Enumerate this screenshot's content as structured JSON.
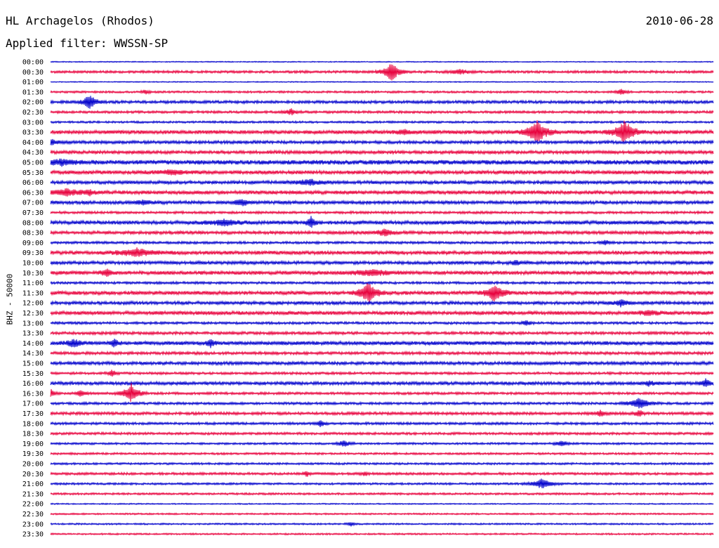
{
  "header": {
    "station": "HL Archagelos (Rhodos)",
    "date": "2010-06-28",
    "filter": "Applied filter: WWSSN-SP"
  },
  "chart_data": {
    "type": "line",
    "title": "HL Archagelos (Rhodos)",
    "ylabel": "BHZ - 50000",
    "row_labels": [
      "00:00",
      "00:30",
      "01:00",
      "01:30",
      "02:00",
      "02:30",
      "03:00",
      "03:30",
      "04:00",
      "04:30",
      "05:00",
      "05:30",
      "06:00",
      "06:30",
      "07:00",
      "07:30",
      "08:00",
      "08:30",
      "09:00",
      "09:30",
      "10:00",
      "10:30",
      "11:00",
      "11:30",
      "12:00",
      "12:30",
      "13:00",
      "13:30",
      "14:00",
      "14:30",
      "15:00",
      "15:30",
      "16:00",
      "16:30",
      "17:00",
      "17:30",
      "18:00",
      "18:30",
      "19:00",
      "19:30",
      "20:00",
      "20:30",
      "21:00",
      "21:30",
      "22:00",
      "22:30",
      "23:00",
      "23:30"
    ],
    "row_colors": [
      "#0000cc",
      "#e8003c"
    ],
    "noise": [
      0.5,
      1.2,
      0.5,
      1,
      1.4,
      1.2,
      1,
      1.8,
      1.5,
      1.6,
      2.2,
      1.8,
      1.6,
      1.8,
      1.6,
      1.2,
      1.8,
      1.6,
      1.2,
      1.8,
      1.6,
      1.8,
      1.2,
      1.8,
      1.6,
      1.8,
      1.2,
      1.4,
      1.8,
      1.4,
      1.6,
      1.2,
      1.6,
      1.2,
      1.2,
      1.4,
      1.2,
      1.2,
      1,
      1,
      1,
      1.2,
      1,
      1,
      0.6,
      0.8,
      0.8,
      0.8
    ],
    "events": [
      {
        "row": 1,
        "x": 558,
        "amp": 14,
        "w": 8
      },
      {
        "row": 1,
        "x": 655,
        "amp": 3,
        "w": 10
      },
      {
        "row": 3,
        "x": 207,
        "amp": 3,
        "w": 4
      },
      {
        "row": 3,
        "x": 885,
        "amp": 4,
        "w": 5
      },
      {
        "row": 4,
        "x": 128,
        "amp": 12,
        "w": 6
      },
      {
        "row": 5,
        "x": 415,
        "amp": 4,
        "w": 6
      },
      {
        "row": 7,
        "x": 765,
        "amp": 16,
        "w": 10
      },
      {
        "row": 7,
        "x": 890,
        "amp": 16,
        "w": 10
      },
      {
        "row": 7,
        "x": 575,
        "amp": 3,
        "w": 8
      },
      {
        "row": 8,
        "x": 73,
        "amp": 5,
        "w": 5
      },
      {
        "row": 10,
        "x": 88,
        "amp": 4,
        "w": 12
      },
      {
        "row": 11,
        "x": 245,
        "amp": 3,
        "w": 15
      },
      {
        "row": 12,
        "x": 440,
        "amp": 4,
        "w": 12
      },
      {
        "row": 13,
        "x": 95,
        "amp": 5,
        "w": 12
      },
      {
        "row": 13,
        "x": 128,
        "amp": 4,
        "w": 5
      },
      {
        "row": 14,
        "x": 345,
        "amp": 5,
        "w": 8
      },
      {
        "row": 14,
        "x": 205,
        "amp": 3,
        "w": 10
      },
      {
        "row": 16,
        "x": 320,
        "amp": 4,
        "w": 15
      },
      {
        "row": 16,
        "x": 443,
        "amp": 8,
        "w": 4
      },
      {
        "row": 17,
        "x": 548,
        "amp": 5,
        "w": 8
      },
      {
        "row": 18,
        "x": 862,
        "amp": 4,
        "w": 4
      },
      {
        "row": 19,
        "x": 195,
        "amp": 5,
        "w": 18
      },
      {
        "row": 20,
        "x": 735,
        "amp": 3,
        "w": 6
      },
      {
        "row": 21,
        "x": 152,
        "amp": 6,
        "w": 5
      },
      {
        "row": 21,
        "x": 530,
        "amp": 4,
        "w": 18
      },
      {
        "row": 23,
        "x": 525,
        "amp": 16,
        "w": 8
      },
      {
        "row": 23,
        "x": 705,
        "amp": 14,
        "w": 8
      },
      {
        "row": 24,
        "x": 885,
        "amp": 5,
        "w": 6
      },
      {
        "row": 25,
        "x": 925,
        "amp": 3,
        "w": 10
      },
      {
        "row": 26,
        "x": 750,
        "amp": 4,
        "w": 4
      },
      {
        "row": 28,
        "x": 105,
        "amp": 5,
        "w": 8
      },
      {
        "row": 28,
        "x": 163,
        "amp": 6,
        "w": 4
      },
      {
        "row": 28,
        "x": 300,
        "amp": 6,
        "w": 4
      },
      {
        "row": 31,
        "x": 160,
        "amp": 5,
        "w": 4
      },
      {
        "row": 32,
        "x": 1005,
        "amp": 6,
        "w": 5
      },
      {
        "row": 32,
        "x": 925,
        "amp": 3,
        "w": 6
      },
      {
        "row": 33,
        "x": 187,
        "amp": 13,
        "w": 8
      },
      {
        "row": 33,
        "x": 115,
        "amp": 5,
        "w": 4
      },
      {
        "row": 33,
        "x": 73,
        "amp": 5,
        "w": 4
      },
      {
        "row": 34,
        "x": 910,
        "amp": 8,
        "w": 10
      },
      {
        "row": 35,
        "x": 855,
        "amp": 4,
        "w": 5
      },
      {
        "row": 35,
        "x": 910,
        "amp": 5,
        "w": 4
      },
      {
        "row": 36,
        "x": 457,
        "amp": 5,
        "w": 4
      },
      {
        "row": 38,
        "x": 490,
        "amp": 5,
        "w": 6
      },
      {
        "row": 38,
        "x": 800,
        "amp": 4,
        "w": 6
      },
      {
        "row": 41,
        "x": 437,
        "amp": 4,
        "w": 3
      },
      {
        "row": 41,
        "x": 520,
        "amp": 3,
        "w": 3
      },
      {
        "row": 42,
        "x": 772,
        "amp": 7,
        "w": 10
      },
      {
        "row": 46,
        "x": 500,
        "amp": 3,
        "w": 4
      }
    ]
  }
}
